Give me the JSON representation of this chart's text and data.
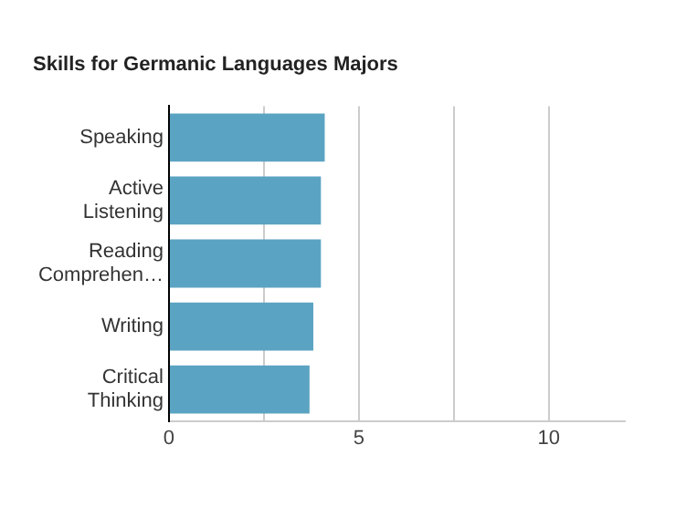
{
  "chart_data": {
    "type": "bar",
    "orientation": "horizontal",
    "title": "Skills for Germanic Languages Majors",
    "categories": [
      "Speaking",
      "Active Listening",
      "Reading Comprehen…",
      "Writing",
      "Critical Thinking"
    ],
    "values": [
      4.1,
      4.0,
      4.0,
      3.8,
      3.7
    ],
    "color": "#5ba3c2",
    "xlim": [
      0,
      12
    ],
    "xticks": [
      0,
      {
        "value": 2.5,
        "label": null
      },
      5,
      {
        "value": 7.5,
        "label": null
      },
      10
    ],
    "grid": "x"
  }
}
